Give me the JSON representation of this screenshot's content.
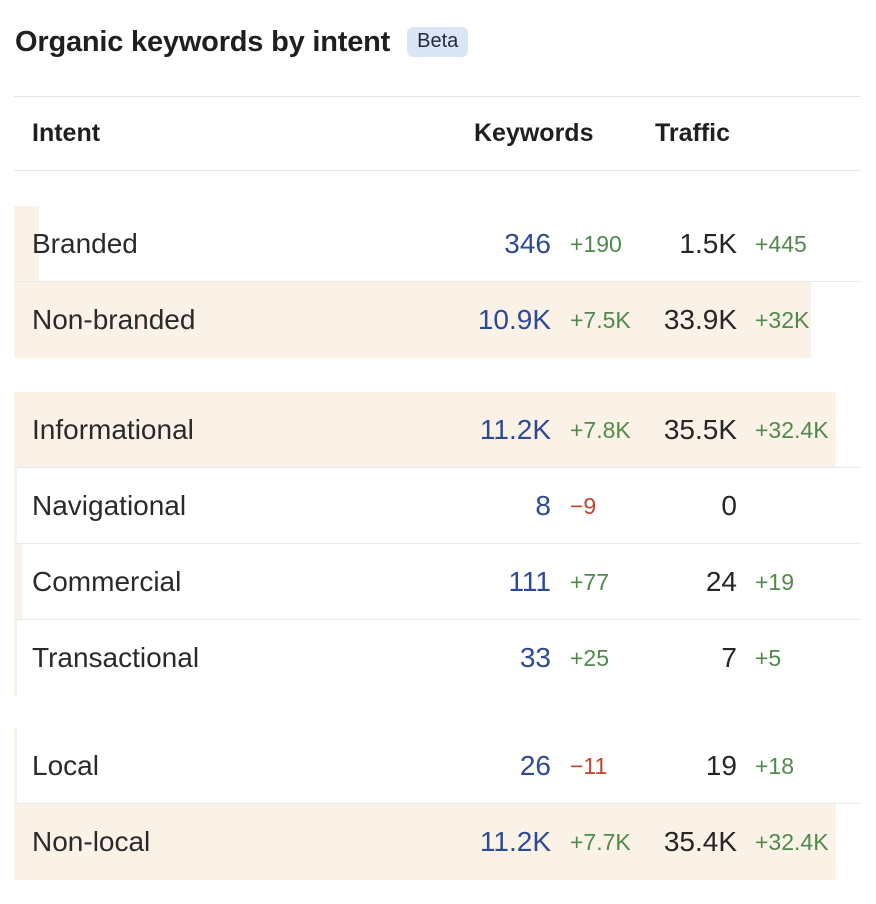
{
  "title": "Organic keywords by intent",
  "badge": "Beta",
  "columns": {
    "intent": "Intent",
    "keywords": "Keywords",
    "traffic": "Traffic"
  },
  "colors": {
    "keywords_value": "#2c4a98",
    "positive_delta": "#4f8a4b",
    "negative_delta": "#c2432f",
    "share_bar": "#fbf2e7"
  },
  "groups": [
    {
      "rows": [
        {
          "label": "Branded",
          "keywords": "346",
          "keywords_delta": "+190",
          "traffic": "1.5K",
          "traffic_delta": "+445",
          "share": 0.03
        },
        {
          "label": "Non-branded",
          "keywords": "10.9K",
          "keywords_delta": "+7.5K",
          "traffic": "33.9K",
          "traffic_delta": "+32K",
          "share": 0.97
        }
      ]
    },
    {
      "rows": [
        {
          "label": "Informational",
          "keywords": "11.2K",
          "keywords_delta": "+7.8K",
          "traffic": "35.5K",
          "traffic_delta": "+32.4K",
          "share": 1.0
        },
        {
          "label": "Navigational",
          "keywords": "8",
          "keywords_delta": "−9",
          "traffic": "0",
          "traffic_delta": "",
          "share": 0.0
        },
        {
          "label": "Commercial",
          "keywords": "111",
          "keywords_delta": "+77",
          "traffic": "24",
          "traffic_delta": "+19",
          "share": 0.01
        },
        {
          "label": "Transactional",
          "keywords": "33",
          "keywords_delta": "+25",
          "traffic": "7",
          "traffic_delta": "+5",
          "share": 0.0
        }
      ]
    },
    {
      "rows": [
        {
          "label": "Local",
          "keywords": "26",
          "keywords_delta": "−11",
          "traffic": "19",
          "traffic_delta": "+18",
          "share": 0.0
        },
        {
          "label": "Non-local",
          "keywords": "11.2K",
          "keywords_delta": "+7.7K",
          "traffic": "35.4K",
          "traffic_delta": "+32.4K",
          "share": 1.0
        }
      ]
    }
  ]
}
